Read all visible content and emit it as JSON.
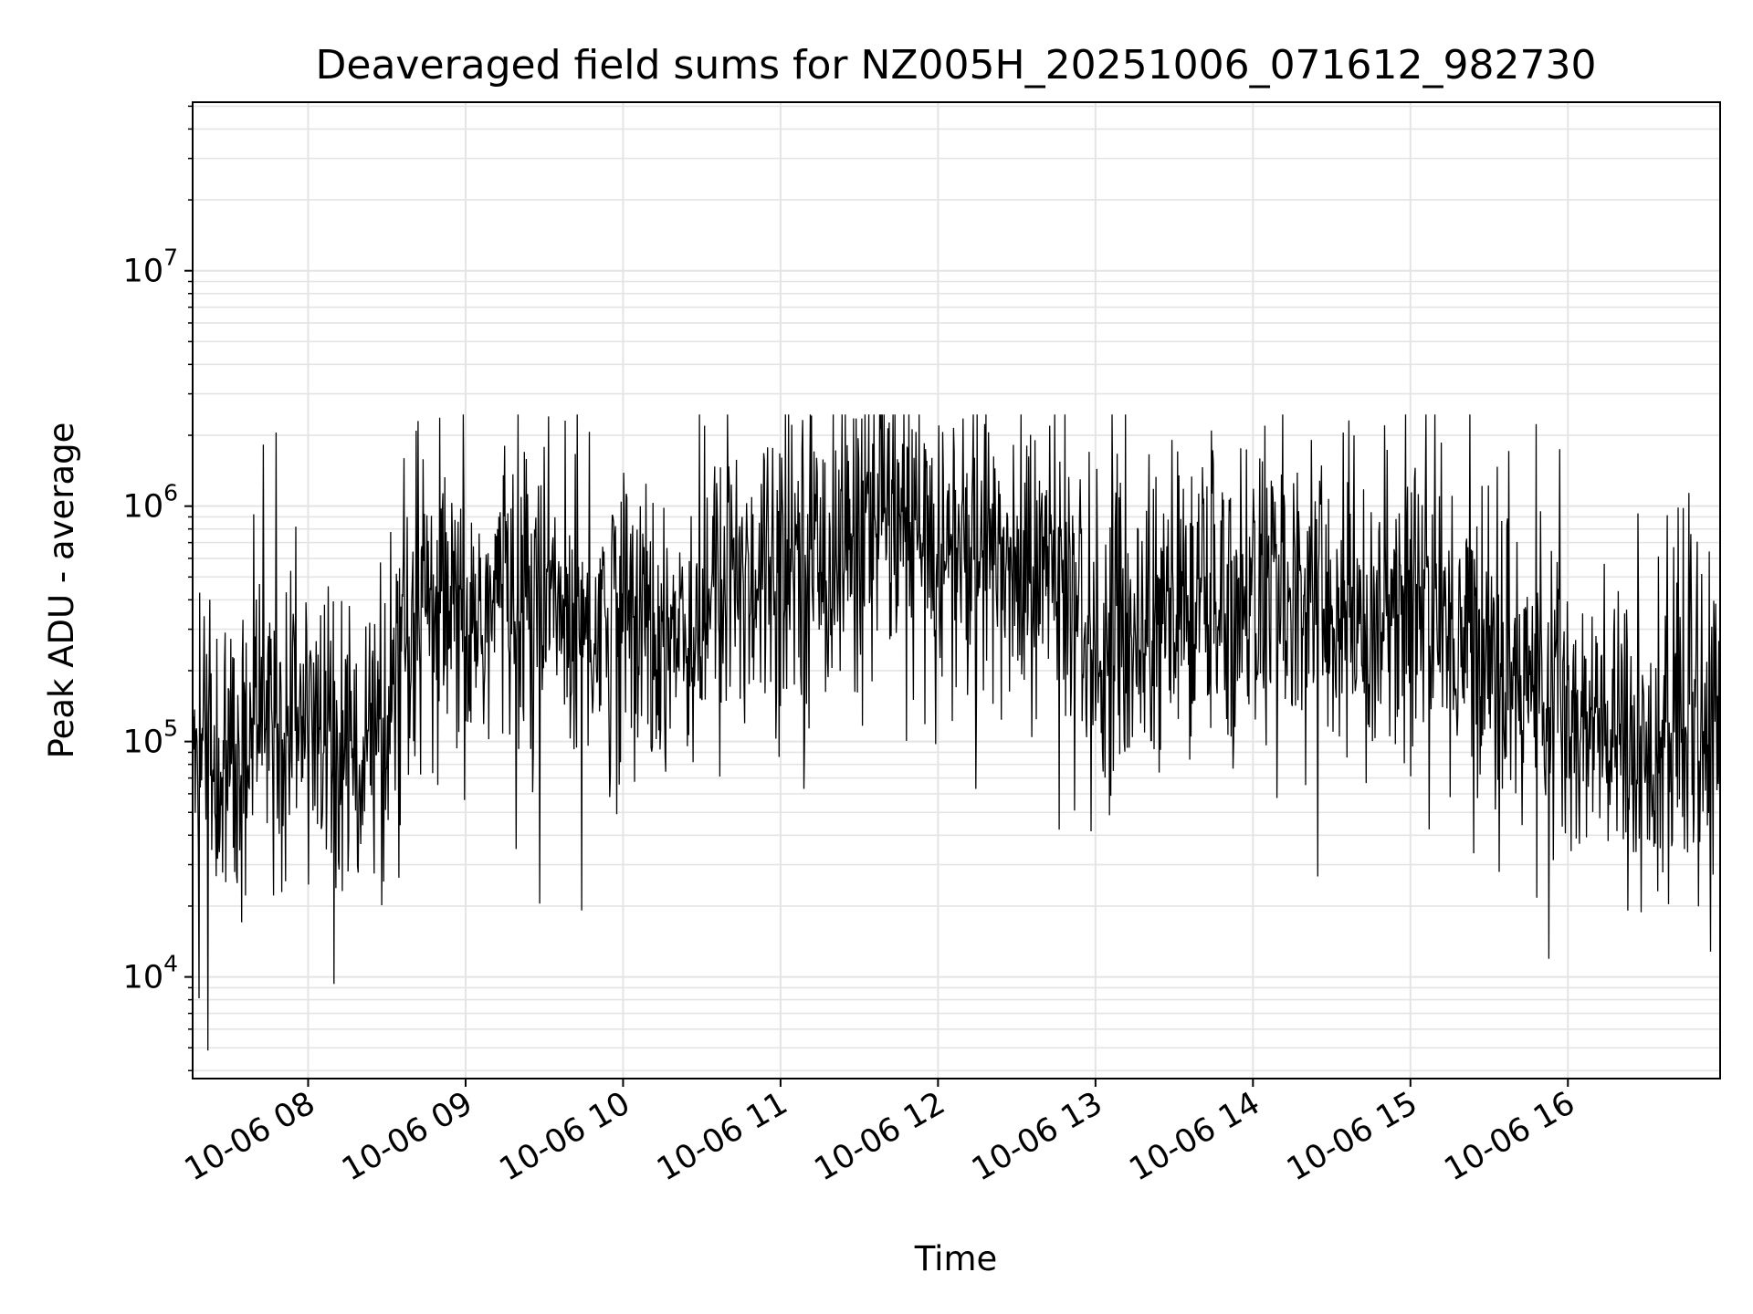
{
  "chart_data": {
    "type": "line",
    "title": "Deaveraged field sums for NZ005H_20251006_071612_982730",
    "xlabel": "Time",
    "ylabel": "Peak ADU - average",
    "y_scale": "log",
    "ylim": [
      3700,
      52000000
    ],
    "xlim": [
      "10-06 07:16",
      "10-06 16:58"
    ],
    "x_ticks": [
      "10-06 08",
      "10-06 09",
      "10-06 10",
      "10-06 11",
      "10-06 12",
      "10-06 13",
      "10-06 14",
      "10-06 15",
      "10-06 16"
    ],
    "y_ticks": [
      {
        "base": "10",
        "exp": "4",
        "value": 10000
      },
      {
        "base": "10",
        "exp": "5",
        "value": 100000
      },
      {
        "base": "10",
        "exp": "6",
        "value": 1000000
      },
      {
        "base": "10",
        "exp": "7",
        "value": 10000000
      }
    ],
    "grid": true,
    "legend": "none",
    "line_color": "#000000",
    "series": [
      {
        "x": [
          "10-06 07:16",
          "10-06 07:30",
          "10-06 07:45",
          "10-06 08:00",
          "10-06 08:15",
          "10-06 08:30",
          "10-06 08:45",
          "10-06 09:00",
          "10-06 09:15",
          "10-06 09:30",
          "10-06 09:45",
          "10-06 10:00",
          "10-06 10:15",
          "10-06 10:30",
          "10-06 10:45",
          "10-06 11:00",
          "10-06 11:15",
          "10-06 11:30",
          "10-06 11:45",
          "10-06 12:00",
          "10-06 12:15",
          "10-06 12:30",
          "10-06 12:45",
          "10-06 13:00",
          "10-06 13:15",
          "10-06 13:30",
          "10-06 13:45",
          "10-06 14:00",
          "10-06 14:15",
          "10-06 14:30",
          "10-06 14:45",
          "10-06 15:00",
          "10-06 15:15",
          "10-06 15:30",
          "10-06 15:45",
          "10-06 16:00",
          "10-06 16:15",
          "10-06 16:30",
          "10-06 16:45",
          "10-06 16:58"
        ],
        "y": [
          90000,
          60000,
          130000,
          120000,
          90000,
          110000,
          350000,
          280000,
          450000,
          400000,
          300000,
          350000,
          300000,
          350000,
          500000,
          650000,
          600000,
          750000,
          800000,
          650000,
          600000,
          550000,
          500000,
          250000,
          300000,
          350000,
          400000,
          450000,
          400000,
          350000,
          300000,
          450000,
          300000,
          250000,
          200000,
          120000,
          100000,
          90000,
          100000,
          110000
        ]
      }
    ]
  }
}
